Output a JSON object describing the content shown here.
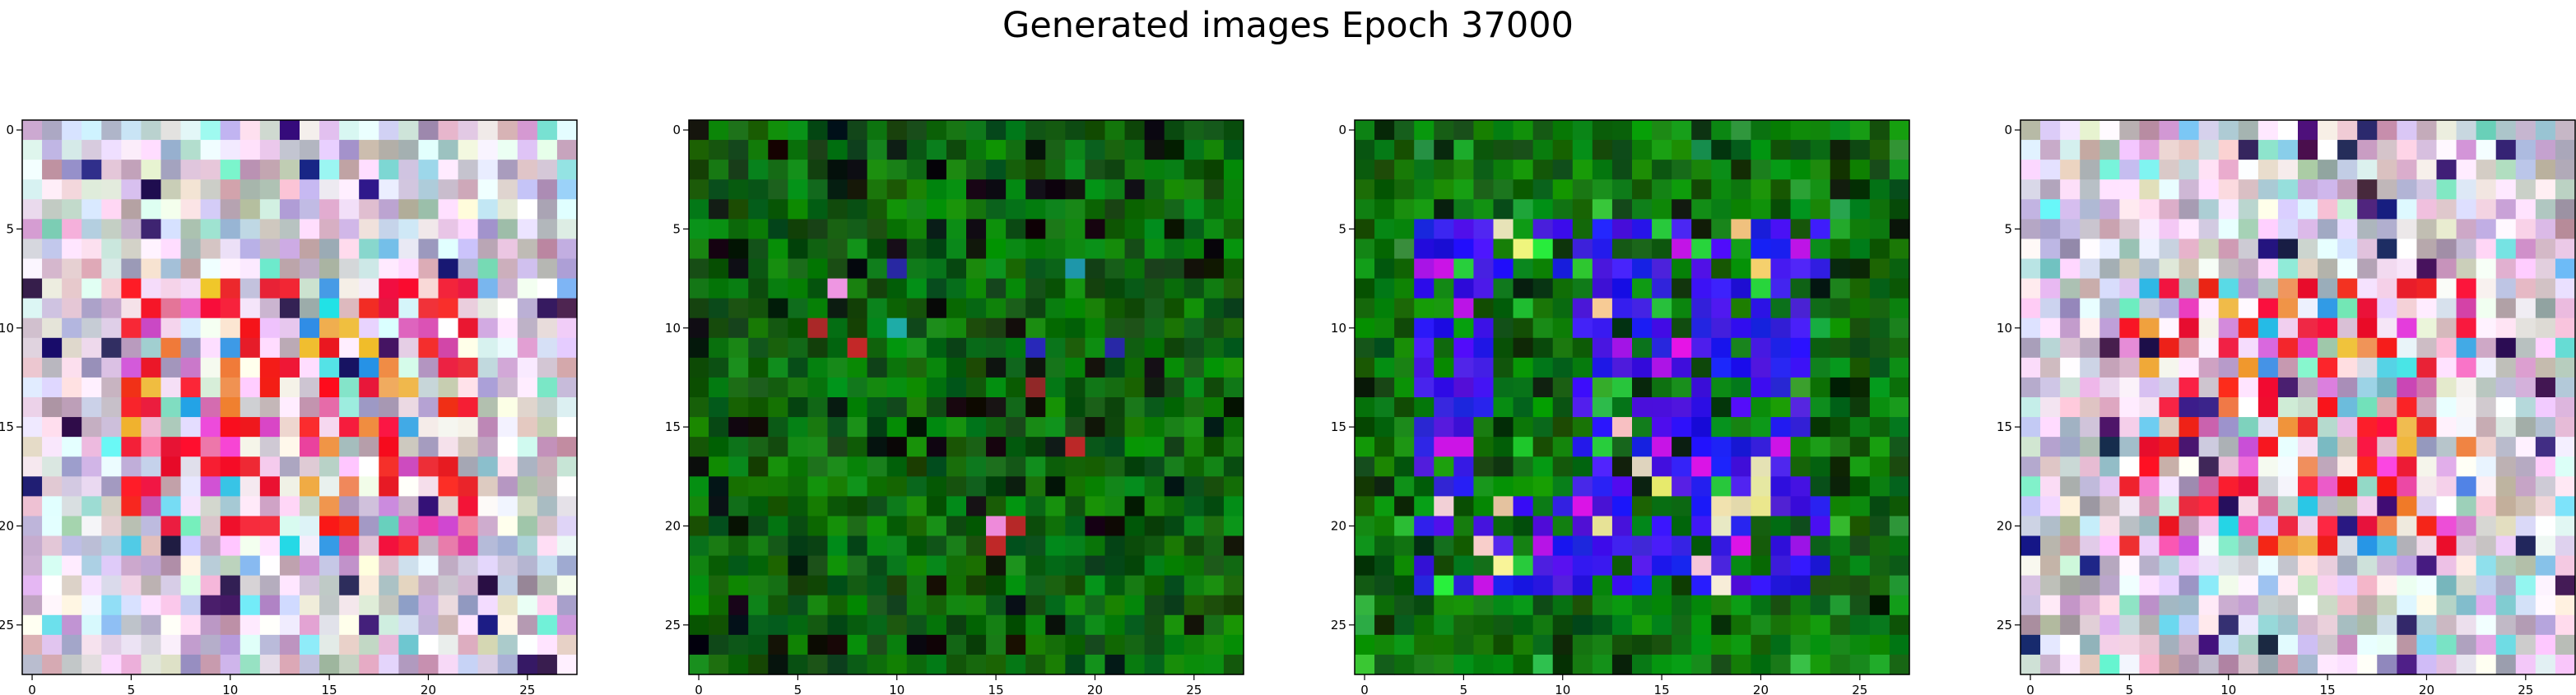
{
  "figure": {
    "title": "Generated images Epoch 37000"
  },
  "chart_data": [
    {
      "type": "heatmap",
      "rows": 28,
      "cols": 28,
      "xticks": [
        0,
        5,
        10,
        15,
        20,
        25
      ],
      "yticks": [
        0,
        5,
        10,
        15,
        20,
        25
      ],
      "xlim": [
        -0.5,
        27.5
      ],
      "ylim": [
        27.5,
        -0.5
      ],
      "style": "pastel-digit",
      "description_colors": {
        "background": "#c8a8c8",
        "foreground": "#ee1020"
      }
    },
    {
      "type": "heatmap",
      "rows": 28,
      "cols": 28,
      "xticks": [
        0,
        5,
        10,
        15,
        20,
        25
      ],
      "yticks": [
        0,
        5,
        10,
        15,
        20,
        25
      ],
      "xlim": [
        -0.5,
        27.5
      ],
      "ylim": [
        27.5,
        -0.5
      ],
      "style": "green-noise",
      "description_colors": {
        "background": "#0a5a0a",
        "foreground": "#101010"
      }
    },
    {
      "type": "heatmap",
      "rows": 28,
      "cols": 28,
      "xticks": [
        0,
        5,
        10,
        15,
        20,
        25
      ],
      "yticks": [
        0,
        5,
        10,
        15,
        20,
        25
      ],
      "xlim": [
        -0.5,
        27.5
      ],
      "ylim": [
        27.5,
        -0.5
      ],
      "style": "green-blue-digit",
      "description_colors": {
        "background": "#0c6a0c",
        "foreground": "#2a18f0"
      }
    },
    {
      "type": "heatmap",
      "rows": 28,
      "cols": 28,
      "xticks": [
        0,
        5,
        10,
        15,
        20,
        25
      ],
      "yticks": [
        0,
        5,
        10,
        15,
        20,
        25
      ],
      "xlim": [
        -0.5,
        27.5
      ],
      "ylim": [
        27.5,
        -0.5
      ],
      "style": "pastel-digit",
      "description_colors": {
        "background": "#c8a8c8",
        "foreground": "#dd1030"
      }
    }
  ]
}
